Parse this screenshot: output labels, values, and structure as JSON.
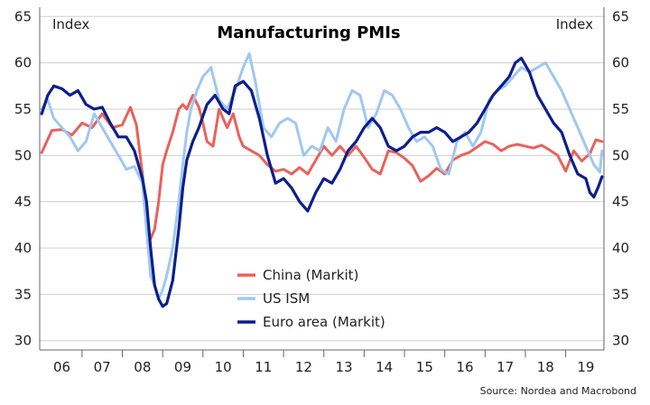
{
  "chart_data": {
    "type": "line",
    "title": "Manufacturing PMIs",
    "ylabel_left": "Index",
    "ylabel_right": "Index",
    "ylim": [
      29,
      66
    ],
    "yticks": [
      30,
      35,
      40,
      45,
      50,
      55,
      60,
      65
    ],
    "xlim": [
      2005.95,
      2019.95
    ],
    "x_tick_labels": [
      "06",
      "07",
      "08",
      "09",
      "10",
      "11",
      "12",
      "13",
      "14",
      "15",
      "16",
      "17",
      "18",
      "19"
    ],
    "grid": true,
    "legend_position": "bottom-center",
    "source": "Source: Nordea and Macrobond",
    "series": [
      {
        "name": "China (Markit)",
        "color": "#e8625c",
        "x": [
          2006.0,
          2006.25,
          2006.5,
          2006.75,
          2007.0,
          2007.25,
          2007.5,
          2007.75,
          2008.0,
          2008.2,
          2008.35,
          2008.5,
          2008.6,
          2008.7,
          2008.8,
          2008.9,
          2009.0,
          2009.1,
          2009.25,
          2009.4,
          2009.5,
          2009.6,
          2009.75,
          2009.9,
          2010.0,
          2010.1,
          2010.25,
          2010.4,
          2010.5,
          2010.6,
          2010.75,
          2010.9,
          2011.0,
          2011.2,
          2011.4,
          2011.6,
          2011.8,
          2012.0,
          2012.2,
          2012.4,
          2012.6,
          2012.8,
          2013.0,
          2013.2,
          2013.4,
          2013.6,
          2013.8,
          2014.0,
          2014.2,
          2014.4,
          2014.6,
          2014.8,
          2015.0,
          2015.2,
          2015.4,
          2015.6,
          2015.8,
          2016.0,
          2016.2,
          2016.4,
          2016.6,
          2016.8,
          2017.0,
          2017.2,
          2017.4,
          2017.6,
          2017.8,
          2018.0,
          2018.2,
          2018.4,
          2018.6,
          2018.8,
          2019.0,
          2019.2,
          2019.4,
          2019.6,
          2019.75,
          2019.9
        ],
        "values": [
          50.3,
          52.7,
          52.8,
          52.2,
          53.5,
          53.0,
          54.5,
          53.0,
          53.3,
          55.2,
          53.3,
          48.0,
          43.0,
          41.0,
          42.0,
          45.0,
          49.0,
          50.5,
          52.5,
          55.0,
          55.5,
          55.0,
          56.5,
          55.2,
          53.5,
          51.5,
          51.0,
          55.0,
          54.0,
          53.0,
          54.5,
          52.0,
          51.0,
          50.5,
          50.0,
          49.0,
          48.3,
          48.5,
          48.0,
          48.7,
          48.0,
          49.5,
          51.0,
          50.0,
          51.0,
          50.0,
          51.0,
          49.8,
          48.5,
          48.0,
          50.5,
          50.3,
          49.7,
          48.9,
          47.2,
          47.8,
          48.6,
          48.0,
          49.5,
          50.0,
          50.3,
          50.9,
          51.5,
          51.2,
          50.5,
          51.0,
          51.2,
          51.0,
          50.8,
          51.1,
          50.6,
          50.0,
          48.3,
          50.5,
          49.4,
          50.2,
          51.7,
          51.5
        ]
      },
      {
        "name": "US ISM",
        "color": "#9fc8f0",
        "x": [
          2006.0,
          2006.15,
          2006.3,
          2006.5,
          2006.7,
          2006.9,
          2007.1,
          2007.3,
          2007.5,
          2007.7,
          2007.9,
          2008.1,
          2008.3,
          2008.5,
          2008.6,
          2008.7,
          2008.8,
          2008.9,
          2009.0,
          2009.1,
          2009.25,
          2009.4,
          2009.5,
          2009.6,
          2009.7,
          2009.85,
          2010.0,
          2010.2,
          2010.4,
          2010.6,
          2010.8,
          2011.0,
          2011.15,
          2011.3,
          2011.5,
          2011.7,
          2011.9,
          2012.1,
          2012.3,
          2012.5,
          2012.7,
          2012.9,
          2013.1,
          2013.3,
          2013.5,
          2013.7,
          2013.9,
          2014.1,
          2014.3,
          2014.5,
          2014.7,
          2014.9,
          2015.1,
          2015.3,
          2015.5,
          2015.7,
          2015.9,
          2016.1,
          2016.3,
          2016.5,
          2016.7,
          2016.9,
          2017.1,
          2017.3,
          2017.5,
          2017.7,
          2017.9,
          2018.1,
          2018.3,
          2018.5,
          2018.7,
          2018.9,
          2019.1,
          2019.3,
          2019.5,
          2019.7,
          2019.85,
          2019.9
        ],
        "values": [
          55.0,
          56.0,
          54.0,
          53.0,
          52.0,
          50.5,
          51.5,
          54.5,
          53.0,
          51.5,
          50.0,
          48.5,
          48.8,
          47.0,
          42.0,
          37.0,
          36.0,
          34.5,
          35.5,
          37.0,
          40.0,
          45.0,
          49.0,
          52.5,
          55.0,
          57.0,
          58.5,
          59.5,
          56.0,
          55.0,
          57.0,
          59.5,
          61.0,
          58.0,
          53.0,
          52.0,
          53.5,
          54.0,
          53.5,
          50.0,
          51.0,
          50.5,
          53.0,
          51.5,
          55.0,
          57.0,
          56.5,
          53.0,
          54.5,
          57.0,
          56.5,
          55.0,
          53.0,
          51.5,
          52.0,
          51.0,
          48.5,
          48.0,
          51.5,
          52.5,
          51.0,
          52.5,
          56.0,
          57.0,
          57.5,
          58.5,
          59.5,
          59.0,
          59.5,
          60.0,
          58.5,
          57.0,
          55.0,
          53.0,
          51.0,
          49.0,
          48.2,
          50.5
        ]
      },
      {
        "name": "Euro area (Markit)",
        "color": "#0d1f8c",
        "x": [
          2006.0,
          2006.15,
          2006.3,
          2006.5,
          2006.7,
          2006.9,
          2007.1,
          2007.3,
          2007.5,
          2007.7,
          2007.9,
          2008.1,
          2008.3,
          2008.5,
          2008.6,
          2008.7,
          2008.8,
          2008.9,
          2009.0,
          2009.1,
          2009.25,
          2009.4,
          2009.5,
          2009.6,
          2009.75,
          2009.9,
          2010.1,
          2010.3,
          2010.5,
          2010.65,
          2010.8,
          2011.0,
          2011.2,
          2011.4,
          2011.6,
          2011.8,
          2012.0,
          2012.2,
          2012.4,
          2012.6,
          2012.8,
          2013.0,
          2013.2,
          2013.4,
          2013.6,
          2013.8,
          2014.0,
          2014.2,
          2014.4,
          2014.6,
          2014.8,
          2015.0,
          2015.2,
          2015.4,
          2015.6,
          2015.8,
          2016.0,
          2016.2,
          2016.4,
          2016.6,
          2016.8,
          2017.0,
          2017.2,
          2017.4,
          2017.6,
          2017.75,
          2017.9,
          2018.1,
          2018.3,
          2018.5,
          2018.7,
          2018.9,
          2019.1,
          2019.3,
          2019.5,
          2019.6,
          2019.7,
          2019.8,
          2019.9
        ],
        "values": [
          54.5,
          56.5,
          57.5,
          57.2,
          56.5,
          57.0,
          55.5,
          55.0,
          55.2,
          53.5,
          52.0,
          52.0,
          50.5,
          47.5,
          45.0,
          40.0,
          36.0,
          34.5,
          33.7,
          34.0,
          36.5,
          42.0,
          46.5,
          49.5,
          51.5,
          53.0,
          55.5,
          56.5,
          55.0,
          54.5,
          57.5,
          58.0,
          57.0,
          54.0,
          50.0,
          47.0,
          47.5,
          46.5,
          45.0,
          44.0,
          46.0,
          47.5,
          47.0,
          48.5,
          50.5,
          51.5,
          53.0,
          54.0,
          53.0,
          51.0,
          50.5,
          51.0,
          52.0,
          52.5,
          52.5,
          53.0,
          52.5,
          51.5,
          52.0,
          52.5,
          53.5,
          55.0,
          56.5,
          57.5,
          58.5,
          60.0,
          60.5,
          59.0,
          56.5,
          55.0,
          53.5,
          52.5,
          50.0,
          48.0,
          47.5,
          46.0,
          45.5,
          46.5,
          47.7
        ]
      }
    ]
  }
}
